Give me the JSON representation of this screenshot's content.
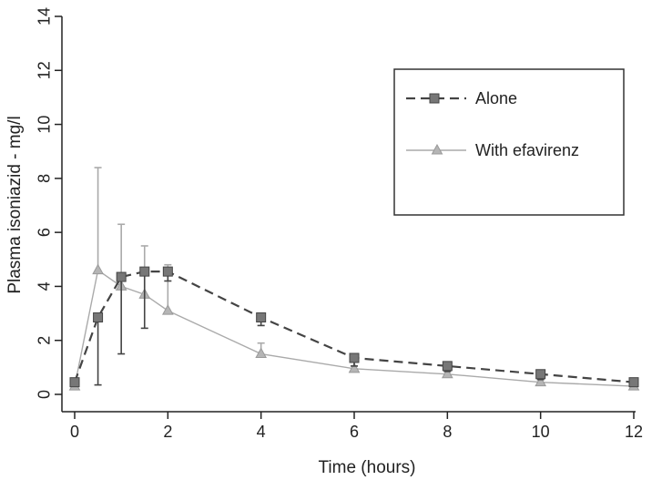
{
  "chart_data": {
    "type": "line",
    "xlabel": "Time (hours)",
    "ylabel": "Plasma isoniazid - mg/l",
    "xlim": [
      0,
      12
    ],
    "ylim": [
      0,
      14
    ],
    "xticks": [
      0,
      2,
      4,
      6,
      8,
      10,
      12
    ],
    "yticks": [
      0,
      2,
      4,
      6,
      8,
      10,
      12,
      14
    ],
    "grid": false,
    "legend_position": "top-right",
    "series": [
      {
        "name": "Alone",
        "color": "#444444",
        "line_style": "dashed",
        "marker": "square",
        "error_bar_direction": "down",
        "x": [
          0,
          0.5,
          1,
          1.5,
          2,
          4,
          6,
          8,
          10,
          12
        ],
        "y": [
          0.45,
          2.85,
          4.35,
          4.55,
          4.55,
          2.85,
          1.35,
          1.05,
          0.75,
          0.45
        ],
        "error": [
          0.15,
          2.5,
          2.85,
          2.1,
          0.35,
          0.3,
          0.3,
          0.2,
          0.2,
          0.15
        ]
      },
      {
        "name": "With efavirenz",
        "color": "#aaaaaa",
        "line_style": "solid",
        "marker": "triangle",
        "error_bar_direction": "up",
        "x": [
          0,
          0.5,
          1,
          1.5,
          2,
          4,
          6,
          8,
          10,
          12
        ],
        "y": [
          0.3,
          4.6,
          4.0,
          3.7,
          3.1,
          1.5,
          0.95,
          0.75,
          0.45,
          0.3
        ],
        "error": [
          0.1,
          3.8,
          2.3,
          1.8,
          1.7,
          0.4,
          0.4,
          0.35,
          0.3,
          0.1
        ]
      }
    ]
  }
}
